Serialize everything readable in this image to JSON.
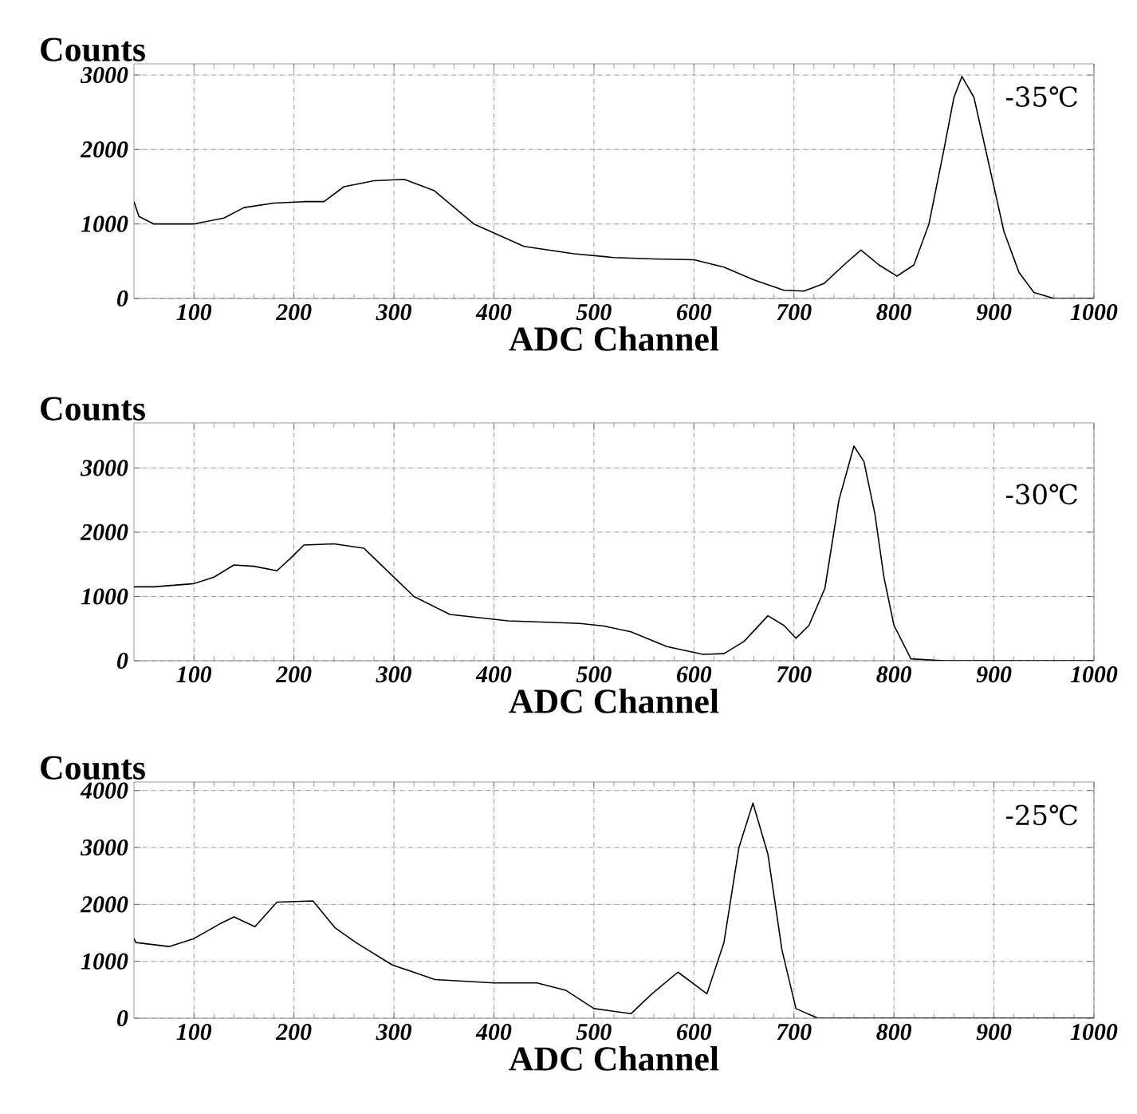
{
  "chart_data": [
    {
      "type": "line",
      "xlabel": "ADC Channel",
      "ylabel": "Counts",
      "xlim": [
        40,
        1000
      ],
      "ylim": [
        0,
        3150
      ],
      "xticks": [
        100,
        200,
        300,
        400,
        500,
        600,
        700,
        800,
        900,
        1000
      ],
      "yticks": [
        0,
        1000,
        2000,
        3000
      ],
      "grid": true,
      "series": [
        {
          "name": "-35℃",
          "color": "#000000",
          "x": [
            40,
            45,
            60,
            100,
            130,
            150,
            180,
            210,
            230,
            250,
            280,
            310,
            330,
            340,
            380,
            430,
            480,
            520,
            560,
            600,
            630,
            660,
            690,
            710,
            730,
            750,
            767,
            785,
            803,
            820,
            835,
            850,
            860,
            868,
            880,
            895,
            910,
            925,
            940,
            960,
            1000
          ],
          "values": [
            1300,
            1100,
            1000,
            1000,
            1080,
            1220,
            1280,
            1300,
            1300,
            1500,
            1580,
            1600,
            1500,
            1450,
            1000,
            700,
            600,
            550,
            530,
            520,
            420,
            250,
            110,
            100,
            200,
            450,
            650,
            450,
            300,
            450,
            1000,
            2000,
            2700,
            2980,
            2700,
            1800,
            900,
            350,
            80,
            0,
            0
          ]
        }
      ]
    },
    {
      "type": "line",
      "xlabel": "ADC Channel",
      "ylabel": "Counts",
      "xlim": [
        40,
        1000
      ],
      "ylim": [
        0,
        3700
      ],
      "xticks": [
        100,
        200,
        300,
        400,
        500,
        600,
        700,
        800,
        900,
        1000
      ],
      "yticks": [
        0,
        1000,
        2000,
        3000
      ],
      "grid": true,
      "series": [
        {
          "name": "-30℃",
          "color": "#000000",
          "x": [
            40,
            60,
            100,
            120,
            140,
            160,
            183,
            197,
            210,
            240,
            270,
            300,
            320,
            356,
            414,
            486,
            510,
            537,
            573,
            609,
            630,
            650,
            674,
            690,
            702,
            715,
            731,
            745,
            760,
            770,
            781,
            790,
            800,
            817,
            850,
            1000
          ],
          "values": [
            1150,
            1150,
            1200,
            1300,
            1490,
            1470,
            1400,
            1600,
            1800,
            1820,
            1750,
            1300,
            1000,
            720,
            620,
            580,
            540,
            450,
            220,
            100,
            110,
            300,
            700,
            550,
            350,
            550,
            1130,
            2500,
            3340,
            3100,
            2280,
            1300,
            550,
            30,
            0,
            0
          ]
        }
      ]
    },
    {
      "type": "line",
      "xlabel": "ADC Channel",
      "ylabel": "Counts",
      "xlim": [
        40,
        1000
      ],
      "ylim": [
        0,
        4150
      ],
      "xticks": [
        100,
        200,
        300,
        400,
        500,
        600,
        700,
        800,
        900,
        1000
      ],
      "yticks": [
        0,
        1000,
        2000,
        3000,
        4000
      ],
      "grid": true,
      "series": [
        {
          "name": "-25℃",
          "color": "#000000",
          "x": [
            40,
            42,
            75,
            100,
            125,
            140,
            161,
            183,
            219,
            241,
            262,
            298,
            341,
            400,
            443,
            472,
            500,
            537,
            558,
            584,
            613,
            630,
            645,
            659,
            674,
            688,
            702,
            724,
            1000
          ],
          "values": [
            1400,
            1330,
            1260,
            1400,
            1650,
            1780,
            1610,
            2040,
            2060,
            1590,
            1330,
            940,
            680,
            620,
            620,
            490,
            170,
            80,
            430,
            810,
            430,
            1330,
            3000,
            3780,
            2880,
            1200,
            170,
            0,
            0
          ]
        }
      ]
    }
  ]
}
